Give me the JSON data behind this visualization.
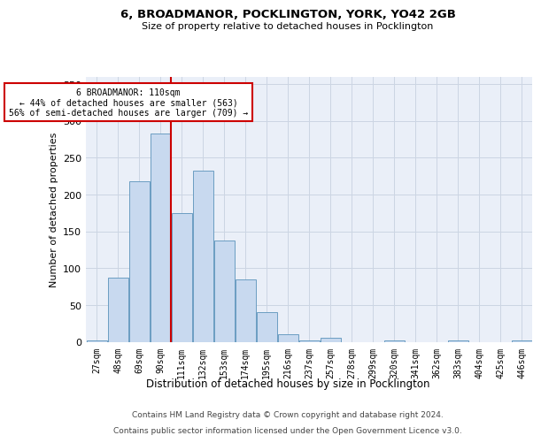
{
  "title": "6, BROADMANOR, POCKLINGTON, YORK, YO42 2GB",
  "subtitle": "Size of property relative to detached houses in Pocklington",
  "xlabel": "Distribution of detached houses by size in Pocklington",
  "ylabel": "Number of detached properties",
  "footer_line1": "Contains HM Land Registry data © Crown copyright and database right 2024.",
  "footer_line2": "Contains public sector information licensed under the Open Government Licence v3.0.",
  "categories": [
    "27sqm",
    "48sqm",
    "69sqm",
    "90sqm",
    "111sqm",
    "132sqm",
    "153sqm",
    "174sqm",
    "195sqm",
    "216sqm",
    "237sqm",
    "257sqm",
    "278sqm",
    "299sqm",
    "320sqm",
    "341sqm",
    "362sqm",
    "383sqm",
    "404sqm",
    "425sqm",
    "446sqm"
  ],
  "values": [
    2,
    87,
    218,
    283,
    175,
    232,
    138,
    85,
    40,
    10,
    2,
    5,
    0,
    0,
    2,
    0,
    0,
    2,
    0,
    0,
    2
  ],
  "bar_color": "#c8d9ef",
  "bar_edge_color": "#6b9dc2",
  "grid_color": "#ccd5e3",
  "background_color": "#eaeff8",
  "red_line_bin": 4,
  "annotation_line1": "6 BROADMANOR: 110sqm",
  "annotation_line2": "← 44% of detached houses are smaller (563)",
  "annotation_line3": "56% of semi-detached houses are larger (709) →",
  "annotation_box_facecolor": "#ffffff",
  "annotation_box_edgecolor": "#cc0000",
  "red_line_color": "#cc0000",
  "ylim": [
    0,
    360
  ],
  "yticks": [
    0,
    50,
    100,
    150,
    200,
    250,
    300,
    350
  ]
}
